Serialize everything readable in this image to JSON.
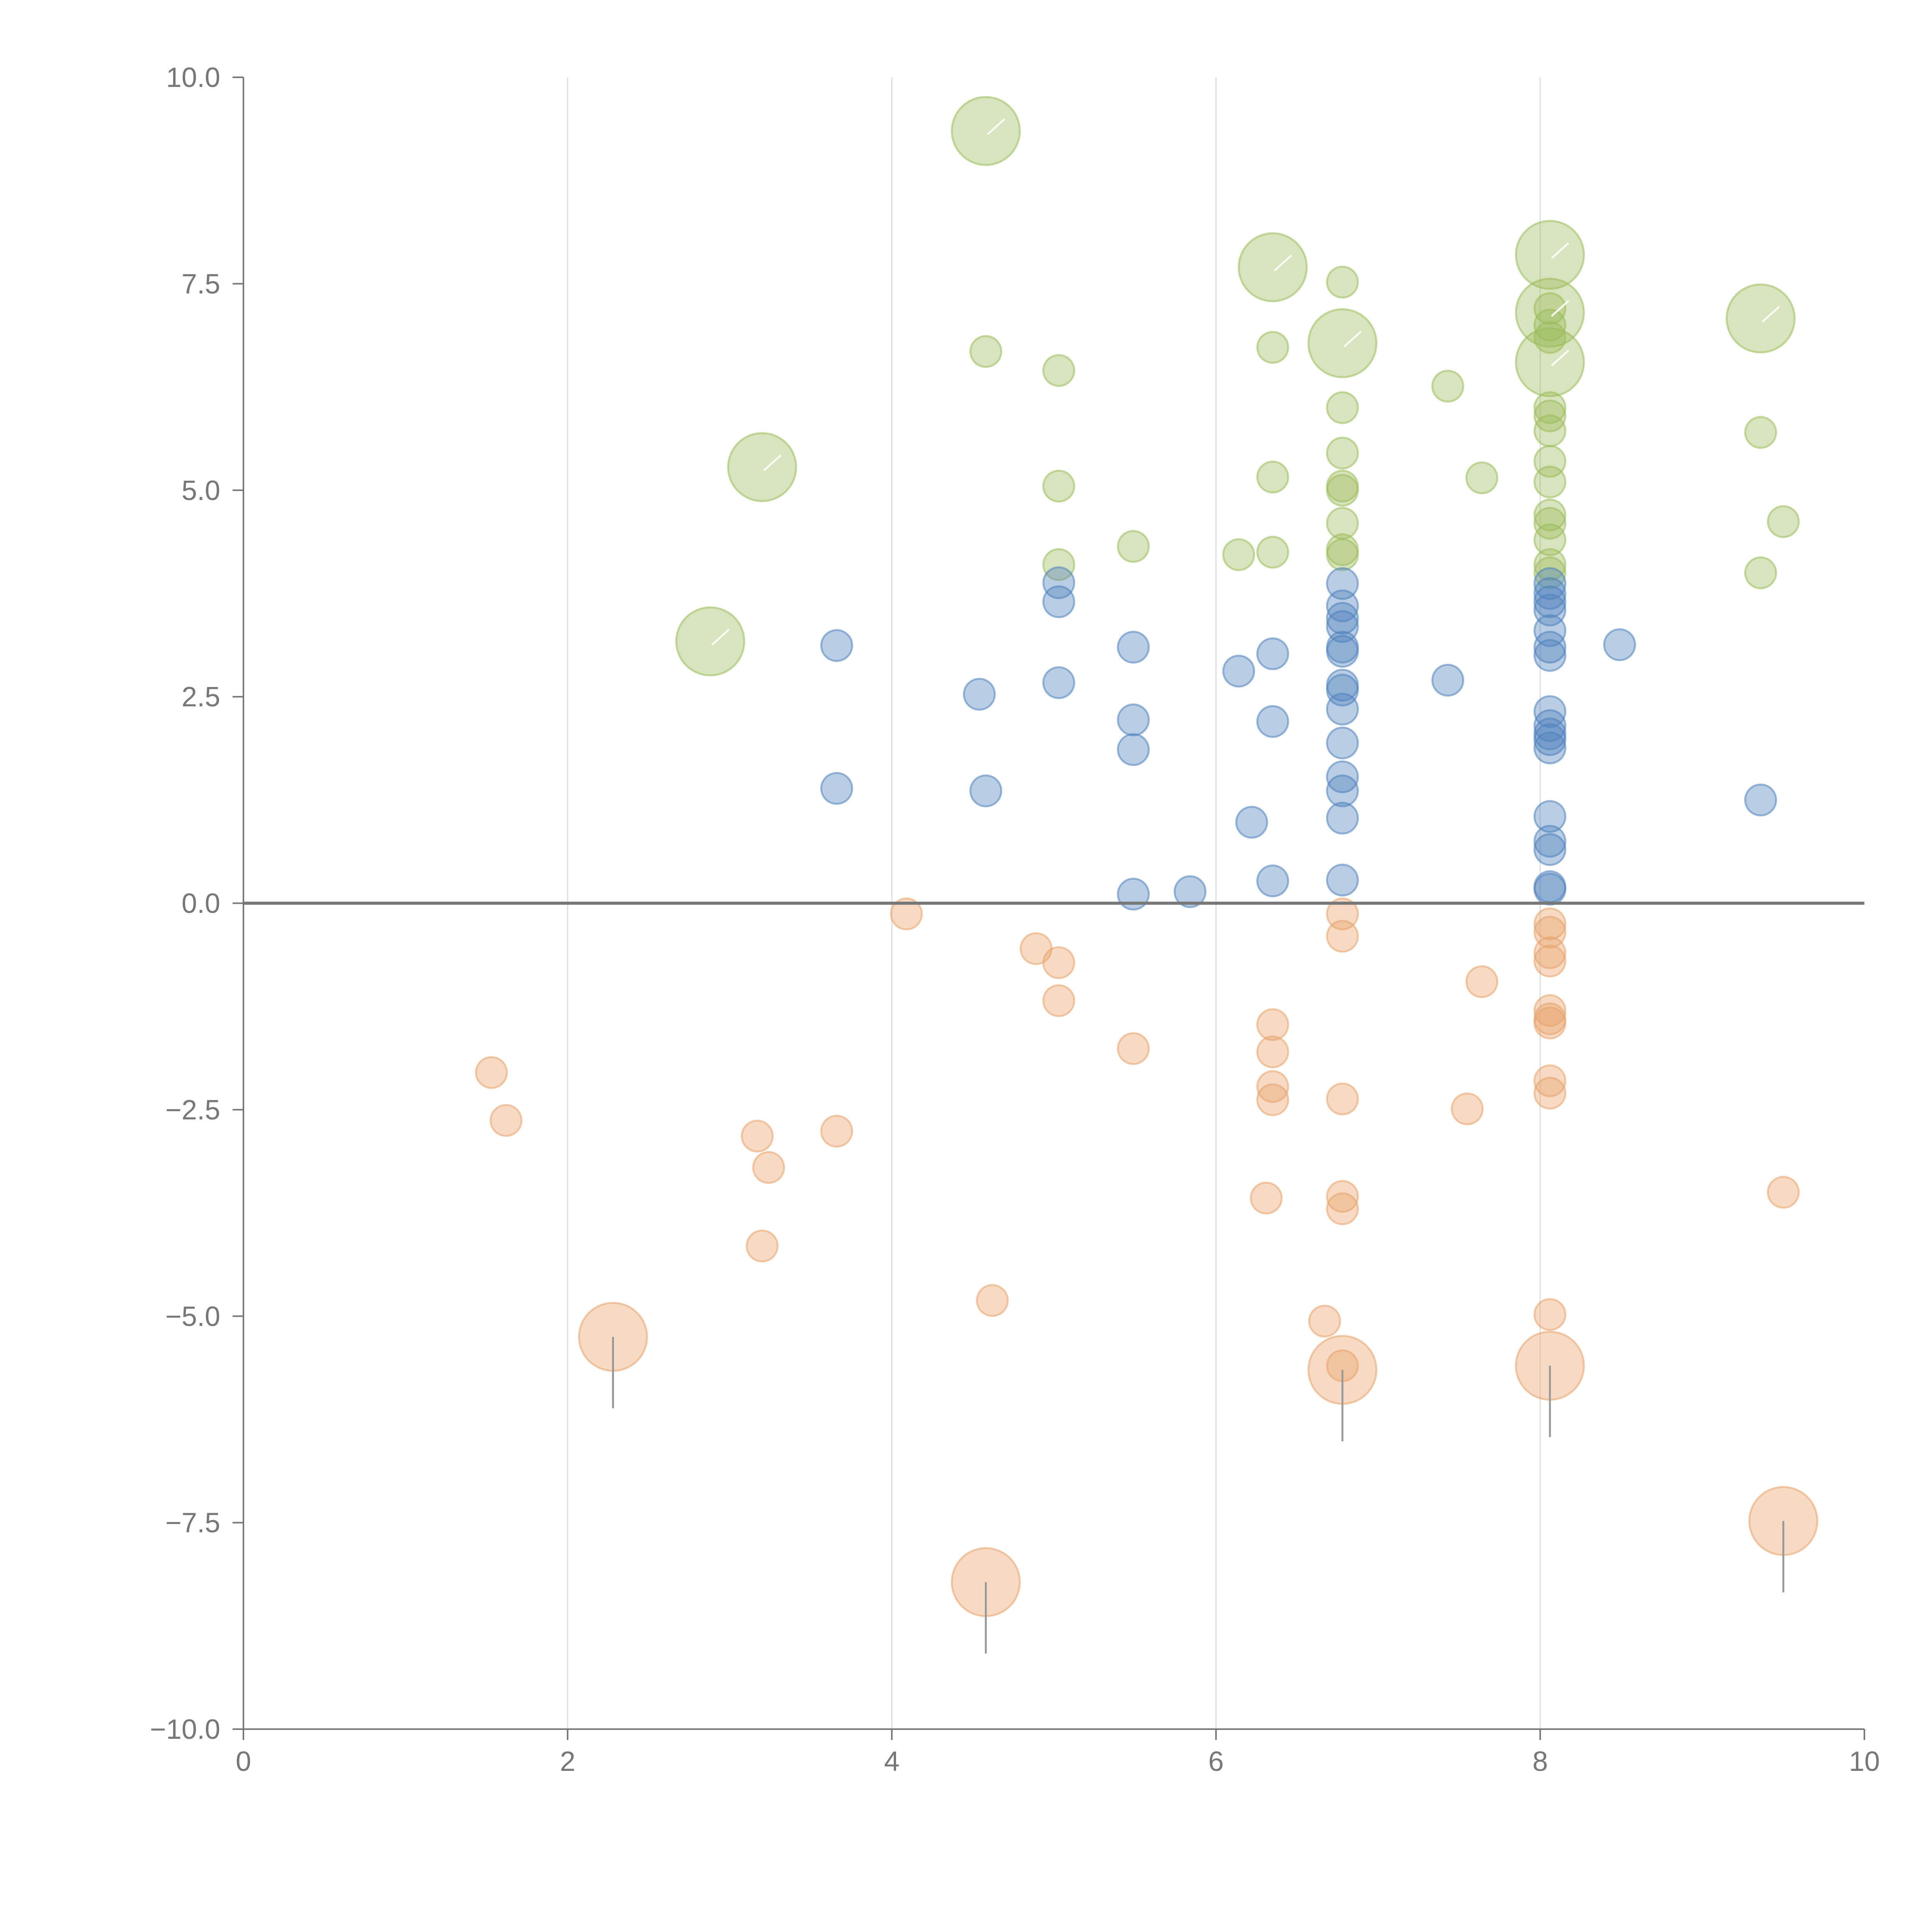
{
  "chart_data": {
    "type": "scatter",
    "title": "",
    "xlabel": "",
    "ylabel": "",
    "xlim": [
      0,
      10
    ],
    "ylim": [
      -10,
      10
    ],
    "x_ticks": [
      "0",
      "2",
      "4",
      "6",
      "8",
      "10"
    ],
    "y_ticks": [
      "10.0",
      "7.5",
      "5.0",
      "2.5",
      "0.0",
      "−2.5",
      "−5.0",
      "−7.5",
      "−10.0"
    ],
    "x_grid": [
      2,
      4,
      6,
      8
    ],
    "zero_line": 0,
    "legend": "none",
    "size_note": "small bubbles = 1, large bubbles = 2.2 (relative size)",
    "series": [
      {
        "name": "green",
        "color": "#9bbb59",
        "points": [
          [
            4.58,
            9.35,
            2.2
          ],
          [
            6.35,
            7.7,
            2.2
          ],
          [
            6.78,
            7.52,
            1
          ],
          [
            8.06,
            7.85,
            2.2
          ],
          [
            8.06,
            7.15,
            2.2
          ],
          [
            8.06,
            6.55,
            2.2
          ],
          [
            9.36,
            7.08,
            2.2
          ],
          [
            4.58,
            6.68,
            1
          ],
          [
            5.03,
            6.45,
            1
          ],
          [
            6.35,
            6.73,
            1
          ],
          [
            6.78,
            6.78,
            2.2
          ],
          [
            7.43,
            6.26,
            1
          ],
          [
            8.06,
            7.2,
            1
          ],
          [
            8.06,
            7.0,
            1
          ],
          [
            8.06,
            6.85,
            1
          ],
          [
            8.06,
            6.0,
            1
          ],
          [
            8.06,
            5.9,
            1
          ],
          [
            8.06,
            5.72,
            1
          ],
          [
            8.06,
            5.35,
            1
          ],
          [
            8.06,
            5.1,
            1
          ],
          [
            8.06,
            4.7,
            1
          ],
          [
            8.06,
            4.6,
            1
          ],
          [
            8.06,
            4.4,
            1
          ],
          [
            8.06,
            4.1,
            1
          ],
          [
            8.06,
            4.0,
            1
          ],
          [
            3.2,
            5.28,
            2.2
          ],
          [
            2.88,
            3.17,
            2.2
          ],
          [
            6.78,
            6.0,
            1
          ],
          [
            6.78,
            5.45,
            1
          ],
          [
            6.78,
            5.05,
            1
          ],
          [
            6.78,
            5.0,
            1
          ],
          [
            6.78,
            4.6,
            1
          ],
          [
            6.78,
            4.28,
            1
          ],
          [
            6.78,
            4.22,
            1
          ],
          [
            5.03,
            5.05,
            1
          ],
          [
            6.35,
            5.16,
            1
          ],
          [
            7.64,
            5.15,
            1
          ],
          [
            9.36,
            5.7,
            1
          ],
          [
            9.5,
            4.62,
            1
          ],
          [
            9.36,
            4.0,
            1
          ],
          [
            5.03,
            4.1,
            1
          ],
          [
            5.49,
            4.32,
            1
          ],
          [
            6.14,
            4.22,
            1
          ],
          [
            6.35,
            4.25,
            1
          ]
        ]
      },
      {
        "name": "blue",
        "color": "#4f81bd",
        "points": [
          [
            3.66,
            3.12,
            1
          ],
          [
            3.66,
            1.39,
            1
          ],
          [
            4.54,
            2.53,
            1
          ],
          [
            4.58,
            1.36,
            1
          ],
          [
            5.03,
            3.88,
            1
          ],
          [
            5.03,
            3.65,
            1
          ],
          [
            5.03,
            2.67,
            1
          ],
          [
            5.49,
            3.1,
            1
          ],
          [
            5.49,
            2.22,
            1
          ],
          [
            5.49,
            1.86,
            1
          ],
          [
            5.49,
            0.11,
            1
          ],
          [
            5.84,
            0.14,
            1
          ],
          [
            6.14,
            2.81,
            1
          ],
          [
            6.22,
            0.98,
            1
          ],
          [
            6.35,
            3.02,
            1
          ],
          [
            6.35,
            2.2,
            1
          ],
          [
            6.35,
            0.27,
            1
          ],
          [
            6.78,
            3.87,
            1
          ],
          [
            6.78,
            3.6,
            1
          ],
          [
            6.78,
            3.45,
            1
          ],
          [
            6.78,
            3.35,
            1
          ],
          [
            6.78,
            3.1,
            1
          ],
          [
            6.78,
            3.05,
            1
          ],
          [
            6.78,
            2.64,
            1
          ],
          [
            6.78,
            2.58,
            1
          ],
          [
            6.78,
            2.35,
            1
          ],
          [
            6.78,
            1.94,
            1
          ],
          [
            6.78,
            1.53,
            1
          ],
          [
            6.78,
            1.36,
            1
          ],
          [
            6.78,
            1.03,
            1
          ],
          [
            6.78,
            0.28,
            1
          ],
          [
            7.43,
            2.7,
            1
          ],
          [
            8.49,
            3.13,
            1
          ],
          [
            9.36,
            1.25,
            1
          ],
          [
            8.06,
            3.87,
            1
          ],
          [
            8.06,
            3.75,
            1
          ],
          [
            8.06,
            3.65,
            1
          ],
          [
            8.06,
            3.55,
            1
          ],
          [
            8.06,
            3.3,
            1
          ],
          [
            8.06,
            3.1,
            1
          ],
          [
            8.06,
            3.0,
            1
          ],
          [
            8.06,
            2.32,
            1
          ],
          [
            8.06,
            2.15,
            1
          ],
          [
            8.06,
            2.05,
            1
          ],
          [
            8.06,
            1.98,
            1
          ],
          [
            8.06,
            1.88,
            1
          ],
          [
            8.06,
            1.05,
            1
          ],
          [
            8.06,
            0.75,
            1
          ],
          [
            8.06,
            0.65,
            1
          ],
          [
            8.06,
            0.2,
            1
          ],
          [
            8.06,
            0.17,
            1
          ]
        ]
      },
      {
        "name": "orange",
        "color": "#e8a36a",
        "points": [
          [
            4.09,
            -0.13,
            1
          ],
          [
            4.89,
            -0.55,
            1
          ],
          [
            5.03,
            -0.72,
            1
          ],
          [
            5.03,
            -1.18,
            1
          ],
          [
            5.49,
            -1.76,
            1
          ],
          [
            6.35,
            -1.47,
            1
          ],
          [
            6.35,
            -1.8,
            1
          ],
          [
            6.35,
            -2.22,
            1
          ],
          [
            6.35,
            -2.38,
            1
          ],
          [
            6.31,
            -3.57,
            1
          ],
          [
            6.78,
            -0.13,
            1
          ],
          [
            6.78,
            -0.4,
            1
          ],
          [
            6.78,
            -2.37,
            1
          ],
          [
            6.78,
            -3.55,
            1
          ],
          [
            6.78,
            -3.7,
            1
          ],
          [
            6.67,
            -5.06,
            1
          ],
          [
            6.78,
            -5.6,
            1
          ],
          [
            6.78,
            -5.65,
            2.2
          ],
          [
            7.64,
            -0.95,
            1
          ],
          [
            7.55,
            -2.49,
            1
          ],
          [
            8.06,
            -0.25,
            1
          ],
          [
            8.06,
            -0.35,
            1
          ],
          [
            8.06,
            -0.6,
            1
          ],
          [
            8.06,
            -0.7,
            1
          ],
          [
            8.06,
            -1.3,
            1
          ],
          [
            8.06,
            -1.4,
            1
          ],
          [
            8.06,
            -1.45,
            1
          ],
          [
            8.06,
            -2.15,
            1
          ],
          [
            8.06,
            -2.3,
            1
          ],
          [
            8.06,
            -4.98,
            1
          ],
          [
            8.06,
            -5.6,
            2.2
          ],
          [
            9.5,
            -3.5,
            1
          ],
          [
            9.5,
            -7.48,
            2.2
          ],
          [
            1.53,
            -2.05,
            1
          ],
          [
            1.62,
            -2.63,
            1
          ],
          [
            3.17,
            -2.82,
            1
          ],
          [
            3.24,
            -3.2,
            1
          ],
          [
            3.66,
            -2.76,
            1
          ],
          [
            3.2,
            -4.15,
            1
          ],
          [
            2.28,
            -5.25,
            2.2
          ],
          [
            4.62,
            -4.81,
            1
          ],
          [
            4.58,
            -8.22,
            2.2
          ]
        ]
      }
    ]
  }
}
